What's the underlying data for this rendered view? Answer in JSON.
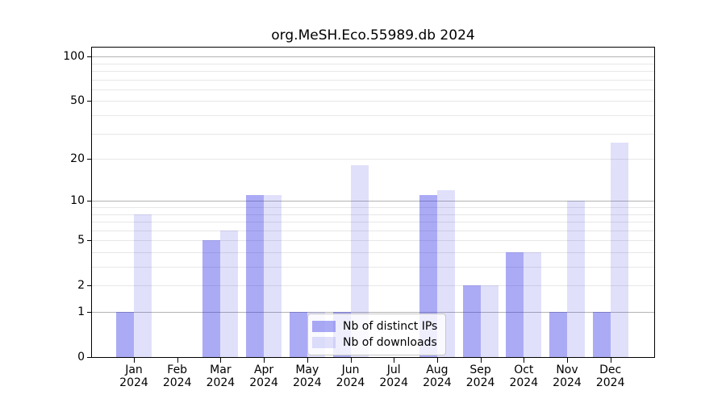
{
  "title": "org.MeSH.Eco.55989.db 2024",
  "chart_data": {
    "type": "bar",
    "title": "org.MeSH.Eco.55989.db 2024",
    "categories": [
      "Jan",
      "Feb",
      "Mar",
      "Apr",
      "May",
      "Jun",
      "Jul",
      "Aug",
      "Sep",
      "Oct",
      "Nov",
      "Dec"
    ],
    "year_label": "2024",
    "series": [
      {
        "name": "Nb of distinct IPs",
        "color": "rgba(45,45,230,0.40)",
        "values": [
          1,
          0,
          5,
          11,
          1,
          1,
          0,
          11,
          2,
          4,
          1,
          1
        ]
      },
      {
        "name": "Nb of downloads",
        "color": "rgba(45,45,230,0.15)",
        "values": [
          8,
          0,
          6,
          11,
          1,
          18,
          0,
          12,
          2,
          4,
          10,
          26
        ]
      }
    ],
    "yscale": "log1p",
    "ylim": [
      0,
      115
    ],
    "yticks": [
      100,
      50,
      20,
      10,
      5,
      2,
      1,
      0
    ],
    "minor_gridlines": [
      2,
      3,
      4,
      5,
      6,
      7,
      8,
      9,
      20,
      30,
      40,
      50,
      60,
      70,
      80,
      90
    ],
    "major_gridlines": [
      1,
      10,
      100
    ],
    "grid": "both",
    "legend_position": "inside-bottom-center",
    "xlabel": "",
    "ylabel": ""
  },
  "colors": {
    "bar_distinct_ips": "rgba(45,45,230,0.40)",
    "bar_downloads": "rgba(45,45,230,0.15)",
    "gridline_major": "#b3b3b3",
    "gridline_minor": "#e7e7e7",
    "axis": "#000000",
    "legend_border": "#c8c8c8"
  }
}
